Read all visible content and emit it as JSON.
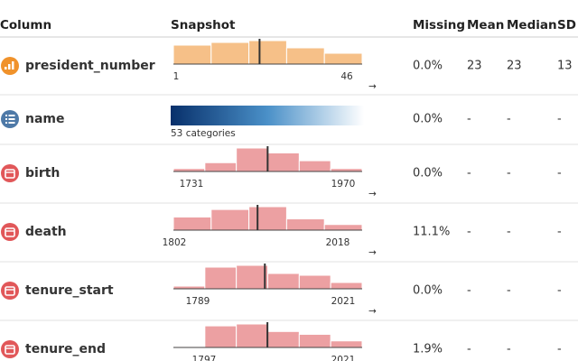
{
  "header": {
    "columns": [
      "Column",
      "Snapshot",
      "Missing",
      "Mean",
      "Median",
      "SD"
    ]
  },
  "rows": [
    {
      "name": "president_number",
      "histogram": [
        21,
        24,
        26,
        18,
        12
      ],
      "marker": 23,
      "range": [
        1,
        46
      ],
      "expand": "→",
      "missing": "0.0%",
      "mean": 23,
      "median": 23,
      "sd": 13
    },
    {
      "name": "name",
      "snapshot_label": "53 categories",
      "missing": "0.0%",
      "mean": "-",
      "median": "-",
      "sd": "-"
    },
    {
      "name": "birth",
      "histogram": [
        3,
        9,
        24,
        19,
        11,
        3
      ],
      "marker": 1851,
      "range": [
        1731,
        1970
      ],
      "expand": "→",
      "missing": "0.0%",
      "mean": "-",
      "median": "-",
      "sd": "-"
    },
    {
      "name": "death",
      "histogram": [
        14,
        22,
        25,
        12,
        6
      ],
      "marker": 1912,
      "range": [
        1802,
        2018
      ],
      "expand": "→",
      "missing": "11.1%",
      "mean": "-",
      "median": "-",
      "sd": "-"
    },
    {
      "name": "tenure_start",
      "histogram": [
        3,
        24,
        26,
        17,
        15,
        7
      ],
      "marker": 1896,
      "range": [
        1789,
        2021
      ],
      "expand": "→",
      "missing": "0.0%",
      "mean": "-",
      "median": "-",
      "sd": "-"
    },
    {
      "name": "tenure_end",
      "histogram": [
        1,
        23,
        25,
        17,
        14,
        7
      ],
      "marker": 1899,
      "range": [
        1797,
        2021
      ],
      "missing": "1.9%",
      "mean": "-",
      "median": "-",
      "sd": "-"
    }
  ]
}
